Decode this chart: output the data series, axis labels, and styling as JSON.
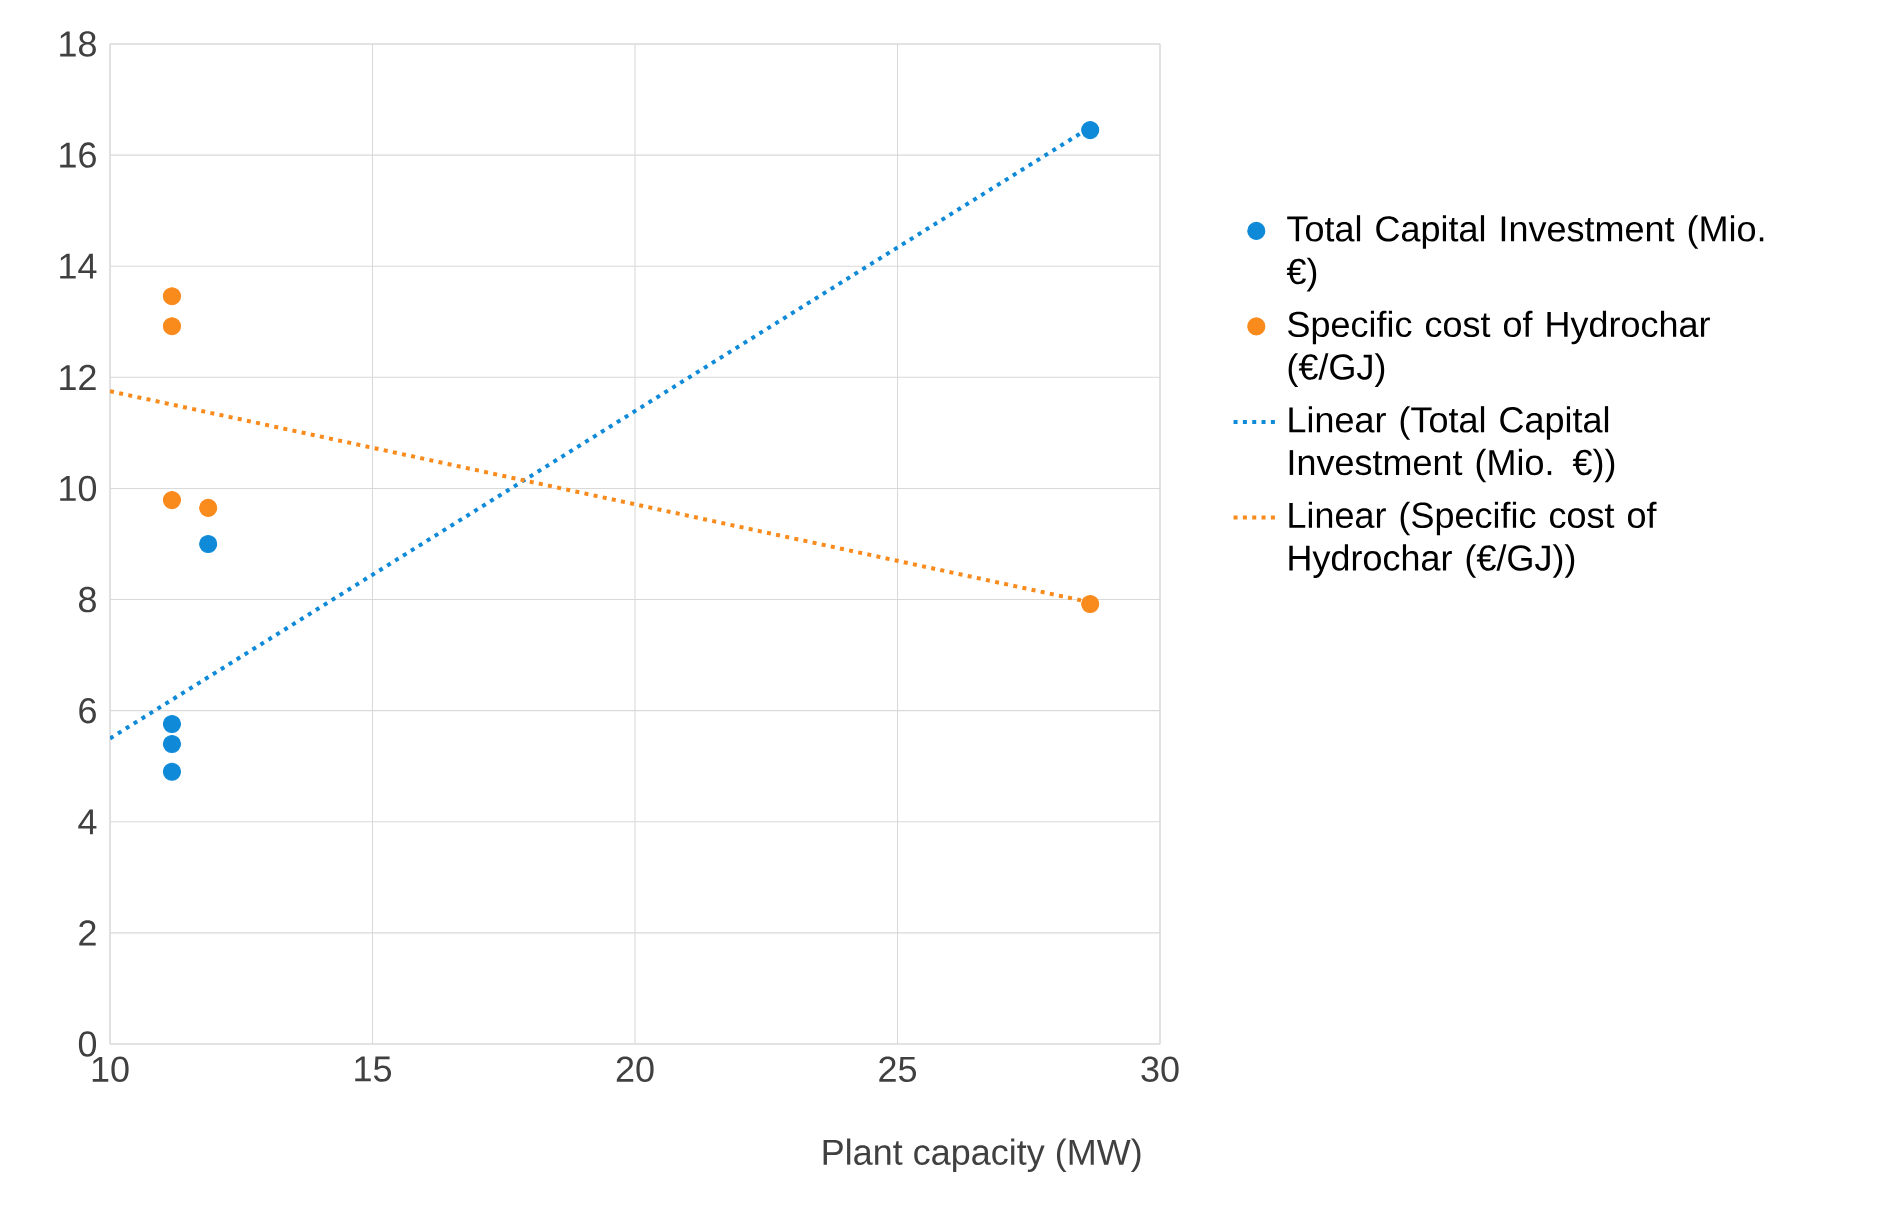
{
  "chart_data": {
    "type": "scatter",
    "xlabel": "Plant capacity (MW)",
    "xlim": [
      10,
      30
    ],
    "xticks": [
      10,
      15,
      20,
      25,
      30
    ],
    "ylim": [
      0,
      18
    ],
    "yticks": [
      0,
      2,
      4,
      6,
      8,
      10,
      12,
      14,
      16,
      18
    ],
    "grid": true,
    "legend": "right",
    "marker": "circle",
    "series": [
      {
        "name": "Total Capital Investment (Mio. €)",
        "color": "#0f8ad8",
        "x": [
          11.18,
          11.18,
          11.18,
          11.87,
          28.67
        ],
        "values": [
          5.76,
          5.4,
          4.9,
          9.0,
          16.45
        ]
      },
      {
        "name": "Specific cost of Hydrochar (€/GJ)",
        "color": "#f98a1c",
        "x": [
          11.18,
          11.18,
          11.18,
          11.87,
          28.67
        ],
        "values": [
          13.46,
          12.92,
          9.79,
          9.65,
          7.92
        ]
      },
      {
        "name": "Linear (Total Capital Investment (Mio. €))",
        "type": "line",
        "line_style": "dotted",
        "marker": "none",
        "color": "#0f8ad8",
        "x": [
          10,
          28.67
        ],
        "values": [
          5.5,
          16.5
        ]
      },
      {
        "name": "Linear (Specific cost of Hydrochar (€/GJ))",
        "type": "line",
        "line_style": "dotted",
        "marker": "none",
        "color": "#f98a1c",
        "x": [
          10,
          28.67
        ],
        "values": [
          11.75,
          7.95
        ]
      }
    ]
  }
}
